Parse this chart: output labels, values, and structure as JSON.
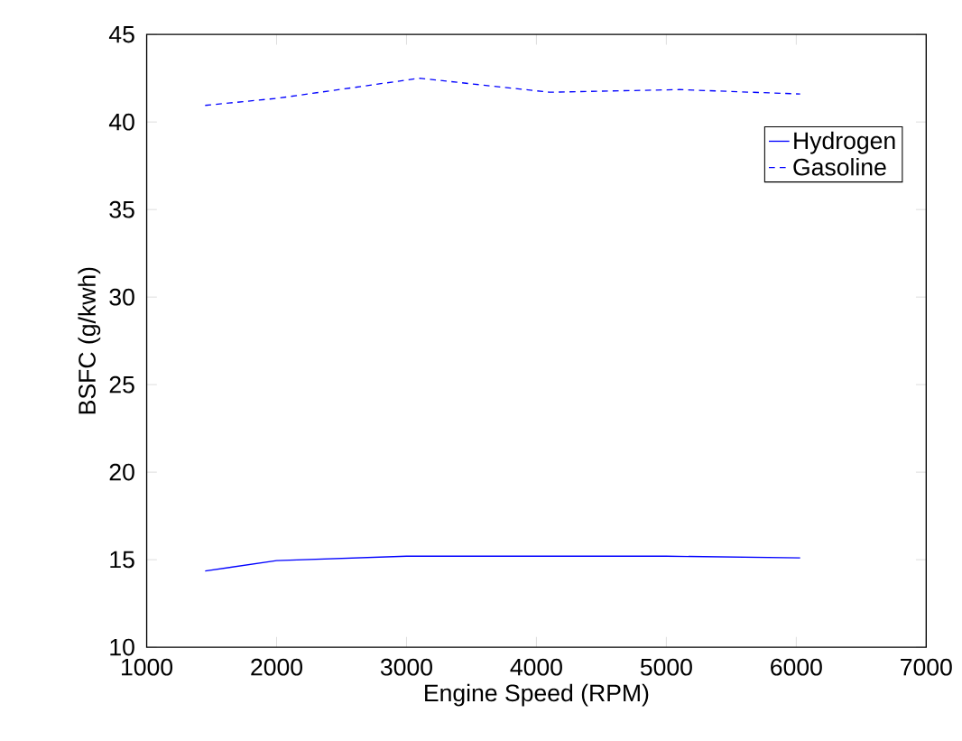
{
  "chart_data": {
    "type": "line",
    "xlabel": "Engine Speed (RPM)",
    "ylabel": "BSFC (g/kwh)",
    "xlim": [
      1000,
      7000
    ],
    "xticks": [
      1000,
      2000,
      3000,
      4000,
      5000,
      6000,
      7000
    ],
    "ylim": [
      10,
      45
    ],
    "yticks": [
      10,
      15,
      20,
      25,
      30,
      35,
      40,
      45
    ],
    "legend": "top right",
    "grid": false,
    "series": [
      {
        "name": "Hydrogen",
        "color": "#0000ff",
        "line_style": "solid",
        "x": [
          1450,
          2000,
          3000,
          4000,
          5000,
          6030
        ],
        "values": [
          14.35,
          14.95,
          15.2,
          15.2,
          15.2,
          15.1
        ]
      },
      {
        "name": "Gasoline",
        "color": "#0000ff",
        "line_style": "dashed",
        "x": [
          1450,
          2000,
          3100,
          4100,
          5100,
          6030
        ],
        "values": [
          40.95,
          41.35,
          42.5,
          41.7,
          41.85,
          41.6
        ]
      }
    ]
  }
}
